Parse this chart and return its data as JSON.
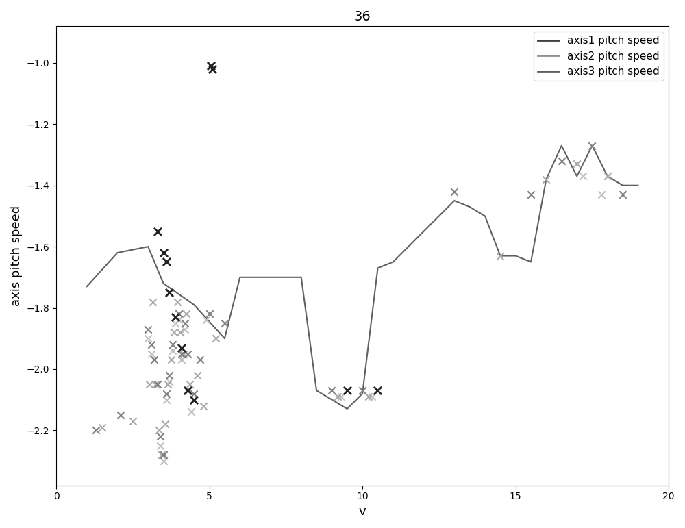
{
  "title": "36",
  "xlabel": "v",
  "ylabel": "axis pitch speed",
  "xlim": [
    0,
    20
  ],
  "ylim": [
    -2.38,
    -0.88
  ],
  "yticks": [
    -2.2,
    -2.0,
    -1.8,
    -1.6,
    -1.4,
    -1.2,
    -1.0
  ],
  "xticks": [
    0,
    5,
    10,
    15,
    20
  ],
  "line_x": [
    1.0,
    2.0,
    3.0,
    3.5,
    4.5,
    5.5,
    6.0,
    7.0,
    8.0,
    8.5,
    9.0,
    9.5,
    10.0,
    10.5,
    11.0,
    12.0,
    13.0,
    13.5,
    14.0,
    14.5,
    15.0,
    15.5,
    16.0,
    16.5,
    17.0,
    17.5,
    18.0,
    18.5,
    19.0
  ],
  "line_y": [
    -1.73,
    -1.62,
    -1.6,
    -1.72,
    -1.79,
    -1.9,
    -1.7,
    -1.7,
    -1.7,
    -2.07,
    -2.1,
    -2.13,
    -2.08,
    -1.67,
    -1.65,
    -1.55,
    -1.45,
    -1.47,
    -1.5,
    -1.63,
    -1.63,
    -1.65,
    -1.38,
    -1.27,
    -1.37,
    -1.27,
    -1.37,
    -1.4,
    -1.4
  ],
  "line_color": "#606060",
  "line1_label": "axis1 pitch speed",
  "line2_color": "#909090",
  "line2_label": "axis2 pitch speed",
  "line3_color": "#404040",
  "line3_label": "axis3 pitch speed",
  "scatter_dark_x": [
    5.05,
    5.1,
    3.3,
    3.5,
    3.6,
    3.7,
    3.9,
    4.1,
    4.3,
    4.5,
    9.5,
    10.5
  ],
  "scatter_dark_y": [
    -1.01,
    -1.02,
    -1.55,
    -1.62,
    -1.65,
    -1.75,
    -1.83,
    -1.93,
    -2.07,
    -2.1,
    -2.07,
    -2.07
  ],
  "scatter_dark_color": "#222222",
  "scatter_med1_x": [
    1.3,
    2.1,
    3.0,
    3.1,
    3.2,
    3.3,
    3.4,
    3.5,
    3.6,
    3.7,
    3.8,
    3.9,
    4.0,
    4.1,
    4.2,
    4.3,
    4.5,
    4.7,
    5.0,
    5.5,
    9.0,
    10.0,
    13.0,
    15.5,
    16.5,
    17.5,
    18.5
  ],
  "scatter_med1_y": [
    -2.2,
    -2.15,
    -1.87,
    -1.92,
    -1.97,
    -2.05,
    -2.22,
    -2.28,
    -2.08,
    -2.02,
    -1.92,
    -1.83,
    -1.82,
    -1.95,
    -1.85,
    -1.95,
    -2.08,
    -1.97,
    -1.82,
    -1.85,
    -2.07,
    -2.07,
    -1.42,
    -1.43,
    -1.32,
    -1.27,
    -1.43
  ],
  "scatter_med1_color": "#808080",
  "scatter_med2_x": [
    1.5,
    2.5,
    3.05,
    3.15,
    3.25,
    3.35,
    3.45,
    3.55,
    3.65,
    3.75,
    3.85,
    3.95,
    4.05,
    4.15,
    4.25,
    4.35,
    4.6,
    4.8,
    5.2,
    9.2,
    10.2,
    14.5,
    16.0,
    17.0,
    18.0
  ],
  "scatter_med2_y": [
    -2.19,
    -2.17,
    -2.05,
    -1.78,
    -2.05,
    -2.2,
    -2.28,
    -2.18,
    -2.05,
    -1.97,
    -1.88,
    -1.78,
    -1.88,
    -1.95,
    -1.82,
    -2.05,
    -2.02,
    -2.12,
    -1.9,
    -2.09,
    -2.09,
    -1.63,
    -1.38,
    -1.33,
    -1.37
  ],
  "scatter_med2_color": "#aaaaaa",
  "scatter_light_x": [
    3.0,
    3.1,
    3.2,
    3.4,
    3.5,
    3.6,
    3.7,
    3.8,
    3.9,
    4.0,
    4.1,
    4.2,
    4.4,
    4.9,
    9.3,
    10.3,
    17.2,
    17.8
  ],
  "scatter_light_y": [
    -1.9,
    -1.95,
    -1.97,
    -2.25,
    -2.3,
    -2.1,
    -2.04,
    -1.94,
    -1.85,
    -1.84,
    -1.97,
    -1.87,
    -2.14,
    -1.84,
    -2.09,
    -2.09,
    -1.37,
    -1.43
  ],
  "scatter_light_color": "#c0c0c0",
  "legend_loc": "upper right",
  "figsize": [
    10.0,
    7.71
  ],
  "dpi": 100
}
